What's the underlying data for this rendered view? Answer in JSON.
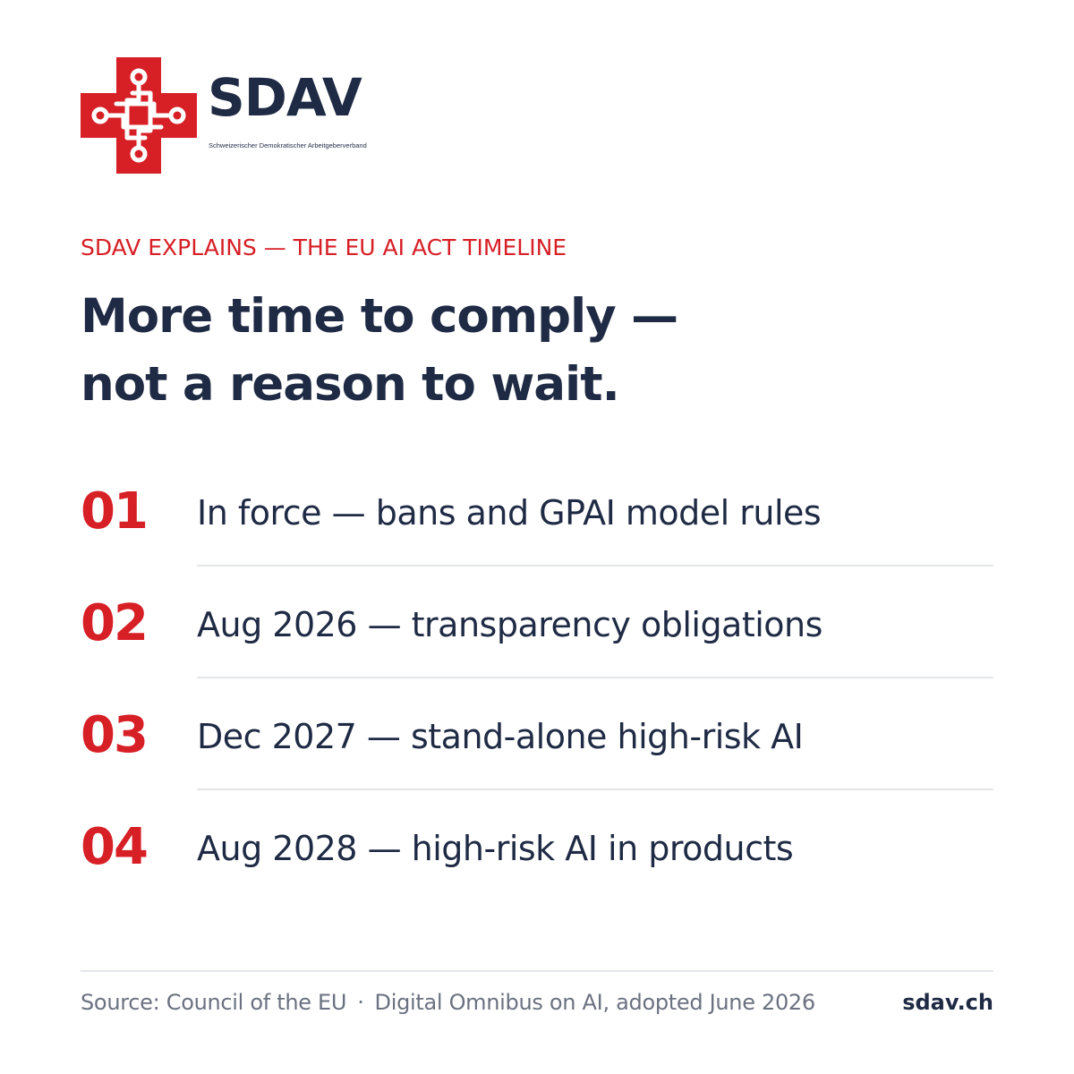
{
  "brand": {
    "name": "SDAV",
    "tagline": "Schweizerischer Demokratischer Arbeitgeberverband",
    "logo_icon": "red-cross-circuit-icon",
    "colors": {
      "accent": "#d71f26",
      "navy": "#1f2a44",
      "muted": "#6b7180",
      "divider": "#e4e6ea"
    }
  },
  "kicker": "SDAV EXPLAINS — THE EU AI ACT TIMELINE",
  "headline": {
    "line1": "More time to comply —",
    "line2": "not a reason to wait."
  },
  "timeline": [
    {
      "number": "01",
      "text": "In force — bans and GPAI model rules"
    },
    {
      "number": "02",
      "text": "Aug 2026 — transparency obligations"
    },
    {
      "number": "03",
      "text": "Dec 2027 — stand-alone high-risk AI"
    },
    {
      "number": "04",
      "text": "Aug 2028 — high-risk AI in products"
    }
  ],
  "footer": {
    "source": "Source: Council of the EU",
    "separator": "·",
    "detail": "Digital Omnibus on AI, adopted June 2026",
    "site": "sdav.ch"
  }
}
